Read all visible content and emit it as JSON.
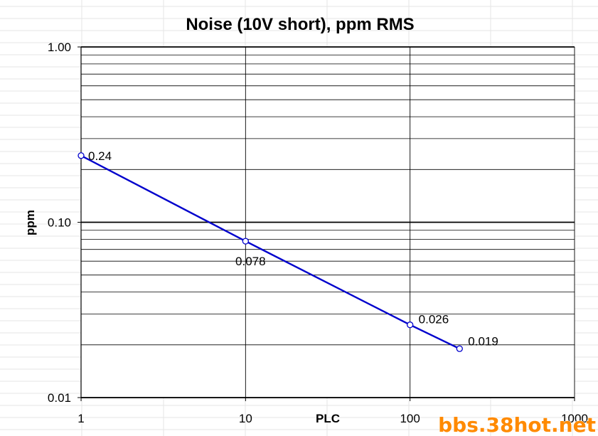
{
  "chart_data": {
    "type": "line",
    "title": "Noise (10V short), ppm RMS",
    "xlabel": "PLC",
    "ylabel": "ppm",
    "x_scale": "log",
    "y_scale": "log",
    "xlim": [
      1,
      1000
    ],
    "ylim": [
      0.01,
      1.0
    ],
    "x_ticks": [
      "1",
      "10",
      "100",
      "1000"
    ],
    "y_ticks": [
      "0.01",
      "0.10",
      "1.00"
    ],
    "grid": true,
    "legend": "none",
    "series": [
      {
        "x": [
          1,
          10,
          100,
          200
        ],
        "y": [
          0.24,
          0.078,
          0.026,
          0.019
        ],
        "labels": [
          "0.24",
          "0.078",
          "0.026",
          "0.019"
        ],
        "color": "#0000cc",
        "marker": "open-circle"
      }
    ]
  },
  "watermark": "bbs.38hot.net",
  "colors": {
    "line": "#0000cc",
    "watermark": "#ff8a00",
    "grid": "#000000"
  }
}
